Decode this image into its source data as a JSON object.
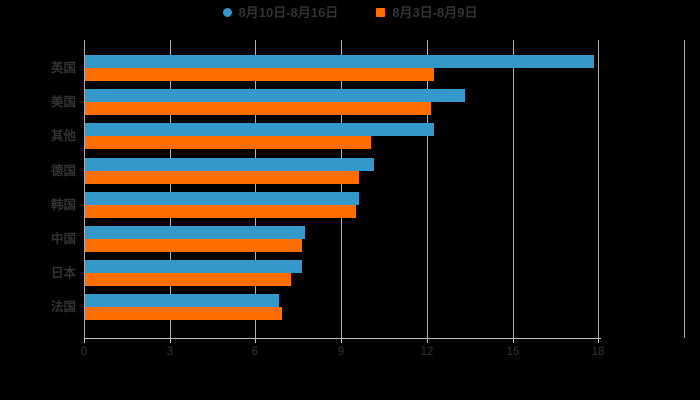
{
  "legend": {
    "items": [
      {
        "label": "8月10日-8月16日",
        "color": "#3498cb",
        "marker": "circle"
      },
      {
        "label": "8月3日-8月9日",
        "color": "#ff6e00",
        "marker": "square"
      }
    ]
  },
  "chart_data": {
    "type": "bar",
    "orientation": "horizontal",
    "title": "",
    "xlabel": "",
    "ylabel": "",
    "categories": [
      "英国",
      "美国",
      "其他",
      "德国",
      "韩国",
      "中国",
      "日本",
      "法国"
    ],
    "series": [
      {
        "name": "8月10日-8月16日",
        "color": "#3498cb",
        "marker": "circle",
        "values": [
          17.8,
          13.3,
          12.2,
          10.1,
          9.6,
          7.7,
          7.6,
          6.8
        ]
      },
      {
        "name": "8月3日-8月9日",
        "color": "#ff6e00",
        "marker": "square",
        "values": [
          12.2,
          12.1,
          10.0,
          9.6,
          9.5,
          7.6,
          7.2,
          6.9
        ]
      }
    ],
    "xlim": [
      0,
      21
    ],
    "x_ticks": [
      0,
      3,
      6,
      9,
      12,
      15,
      18
    ],
    "grid": true,
    "grid_right_border_value": 21,
    "legend_position": "top"
  },
  "colors": {
    "background": "#000000",
    "text": "#333333",
    "gridline": "#cccccc",
    "axis_line": "#c0c0c0",
    "series_blue": "#3498cb",
    "series_orange": "#ff6e00"
  }
}
